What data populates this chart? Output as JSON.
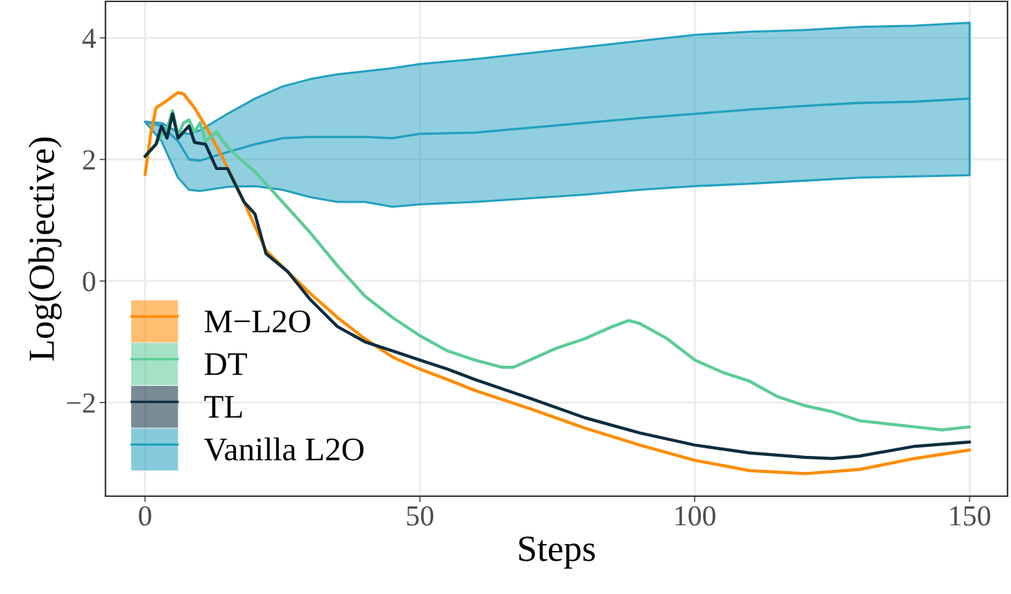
{
  "chart_data": {
    "type": "line",
    "xlabel": "Steps",
    "ylabel": "Log(Objective)",
    "xlim": [
      -7.2,
      156.9
    ],
    "ylim": [
      -3.54,
      4.6
    ],
    "xticks": [
      0,
      50,
      100,
      150
    ],
    "yticks": [
      {
        "value": -2,
        "label": "−2"
      },
      0,
      2,
      4
    ],
    "grid": true,
    "legend": "bottom left",
    "line_style": "solid",
    "marker": "none",
    "series": [
      {
        "name": "M−L2O",
        "color": "#ff8c00",
        "x": [
          0,
          1,
          2,
          4,
          6,
          7,
          9,
          11,
          14,
          18,
          22,
          26,
          30,
          35,
          40,
          45,
          50,
          55,
          60,
          70,
          80,
          90,
          100,
          110,
          120,
          130,
          140,
          150
        ],
        "values": [
          1.75,
          2.4,
          2.85,
          2.97,
          3.1,
          3.08,
          2.85,
          2.55,
          2.05,
          1.3,
          0.5,
          0.15,
          -0.2,
          -0.6,
          -0.95,
          -1.25,
          -1.45,
          -1.62,
          -1.8,
          -2.1,
          -2.42,
          -2.7,
          -2.95,
          -3.12,
          -3.17,
          -3.1,
          -2.92,
          -2.78
        ]
      },
      {
        "name": "DT",
        "color": "#5ccc96",
        "x": [
          0,
          2,
          3,
          4,
          5,
          6,
          7,
          8,
          9,
          10,
          11,
          13,
          15,
          18,
          20,
          22,
          25,
          30,
          35,
          40,
          45,
          50,
          55,
          60,
          65,
          67,
          70,
          75,
          80,
          85,
          88,
          90,
          95,
          100,
          105,
          110,
          115,
          120,
          125,
          130,
          135,
          140,
          145,
          150
        ],
        "values": [
          2.05,
          2.25,
          2.4,
          2.5,
          2.8,
          2.4,
          2.6,
          2.65,
          2.45,
          2.6,
          2.3,
          2.45,
          2.2,
          1.95,
          1.8,
          1.6,
          1.3,
          0.8,
          0.25,
          -0.25,
          -0.6,
          -0.9,
          -1.15,
          -1.3,
          -1.42,
          -1.42,
          -1.3,
          -1.1,
          -0.95,
          -0.75,
          -0.65,
          -0.7,
          -0.95,
          -1.3,
          -1.5,
          -1.65,
          -1.9,
          -2.05,
          -2.15,
          -2.3,
          -2.35,
          -2.4,
          -2.45,
          -2.4
        ]
      },
      {
        "name": "TL",
        "color": "#0d2d40",
        "x": [
          0,
          2,
          3,
          4,
          5,
          6,
          7,
          8,
          9,
          11,
          13,
          15,
          18,
          20,
          22,
          26,
          30,
          35,
          40,
          45,
          50,
          55,
          60,
          70,
          80,
          90,
          100,
          110,
          120,
          125,
          130,
          140,
          150
        ],
        "values": [
          2.05,
          2.25,
          2.55,
          2.35,
          2.75,
          2.35,
          2.45,
          2.55,
          2.28,
          2.25,
          1.85,
          1.85,
          1.3,
          1.1,
          0.45,
          0.15,
          -0.3,
          -0.75,
          -1.0,
          -1.15,
          -1.3,
          -1.45,
          -1.62,
          -1.93,
          -2.25,
          -2.5,
          -2.7,
          -2.83,
          -2.9,
          -2.92,
          -2.88,
          -2.72,
          -2.65
        ]
      },
      {
        "name": "Vanilla L2O",
        "color": "#22a0bf",
        "x": [
          0,
          3,
          6,
          8,
          10,
          15,
          20,
          25,
          30,
          35,
          40,
          45,
          50,
          60,
          70,
          80,
          90,
          100,
          110,
          120,
          130,
          140,
          150
        ],
        "values": [
          2.62,
          2.55,
          2.3,
          2.0,
          1.98,
          2.12,
          2.25,
          2.35,
          2.37,
          2.37,
          2.37,
          2.35,
          2.42,
          2.44,
          2.52,
          2.6,
          2.68,
          2.75,
          2.82,
          2.88,
          2.93,
          2.95,
          3.0
        ],
        "upper": [
          2.62,
          2.6,
          2.45,
          2.42,
          2.48,
          2.75,
          3.0,
          3.2,
          3.32,
          3.4,
          3.45,
          3.5,
          3.57,
          3.65,
          3.75,
          3.85,
          3.95,
          4.05,
          4.1,
          4.13,
          4.18,
          4.2,
          4.25
        ],
        "lower": [
          2.62,
          2.3,
          1.7,
          1.5,
          1.48,
          1.55,
          1.56,
          1.5,
          1.38,
          1.3,
          1.3,
          1.22,
          1.26,
          1.3,
          1.36,
          1.42,
          1.5,
          1.56,
          1.6,
          1.65,
          1.7,
          1.72,
          1.74
        ]
      }
    ]
  }
}
